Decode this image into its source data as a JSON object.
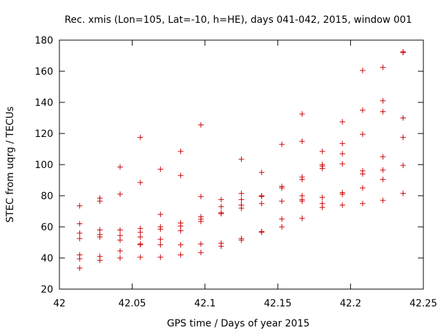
{
  "chart_data": {
    "type": "scatter",
    "title": "Rec. xmis (Lon=105, Lat=-10, h=HE), days 041-042, 2015, window 001",
    "xlabel": "GPS time / Days of year 2015",
    "ylabel": "STEC from uqrg / TECUs",
    "xlim": [
      42,
      42.25
    ],
    "ylim": [
      20,
      180
    ],
    "xticks": [
      42,
      42.05,
      42.1,
      42.15,
      42.2,
      42.25
    ],
    "xtick_labels": [
      "42",
      "42.05",
      "42.1",
      "42.15",
      "42.2",
      "42.25"
    ],
    "yticks": [
      20,
      40,
      60,
      80,
      100,
      120,
      140,
      160,
      180
    ],
    "ytick_labels": [
      "20",
      "40",
      "60",
      "80",
      "100",
      "120",
      "140",
      "160",
      "180"
    ],
    "grid": false,
    "marker": "plus",
    "color": "#cc0000",
    "series": [
      {
        "name": "STEC",
        "points": [
          [
            42.0139,
            33.5
          ],
          [
            42.0139,
            39.5
          ],
          [
            42.0139,
            42
          ],
          [
            42.0139,
            52.5
          ],
          [
            42.0139,
            56
          ],
          [
            42.0139,
            62
          ],
          [
            42.0139,
            73.5
          ],
          [
            42.0278,
            38.5
          ],
          [
            42.0278,
            41
          ],
          [
            42.0278,
            53.5
          ],
          [
            42.0278,
            55
          ],
          [
            42.0278,
            58
          ],
          [
            42.0278,
            76.5
          ],
          [
            42.0278,
            78.5
          ],
          [
            42.0417,
            40
          ],
          [
            42.0417,
            44.5
          ],
          [
            42.0417,
            51.5
          ],
          [
            42.0417,
            54.5
          ],
          [
            42.0417,
            58
          ],
          [
            42.0417,
            81
          ],
          [
            42.0417,
            98.5
          ],
          [
            42.0556,
            40.5
          ],
          [
            42.0556,
            48.5
          ],
          [
            42.0556,
            49
          ],
          [
            42.0556,
            53.5
          ],
          [
            42.0556,
            56.5
          ],
          [
            42.0556,
            59
          ],
          [
            42.0556,
            88.5
          ],
          [
            42.0556,
            117.5
          ],
          [
            42.0694,
            40.5
          ],
          [
            42.0694,
            48.5
          ],
          [
            42.0694,
            52
          ],
          [
            42.0694,
            58.5
          ],
          [
            42.0694,
            60
          ],
          [
            42.0694,
            68
          ],
          [
            42.0694,
            97
          ],
          [
            42.0833,
            42
          ],
          [
            42.0833,
            48.5
          ],
          [
            42.0833,
            57.5
          ],
          [
            42.0833,
            60.5
          ],
          [
            42.0833,
            62.5
          ],
          [
            42.0833,
            93
          ],
          [
            42.0833,
            108.5
          ],
          [
            42.0972,
            43.5
          ],
          [
            42.0972,
            49
          ],
          [
            42.0972,
            63.5
          ],
          [
            42.0972,
            65
          ],
          [
            42.0972,
            66.5
          ],
          [
            42.0972,
            79.5
          ],
          [
            42.0972,
            125.5
          ],
          [
            42.1111,
            47.5
          ],
          [
            42.1111,
            49.5
          ],
          [
            42.1111,
            68.5
          ],
          [
            42.1111,
            69
          ],
          [
            42.1111,
            73
          ],
          [
            42.1111,
            77.5
          ],
          [
            42.125,
            51.5
          ],
          [
            42.125,
            52.5
          ],
          [
            42.125,
            72
          ],
          [
            42.125,
            74
          ],
          [
            42.125,
            77.5
          ],
          [
            42.125,
            81.5
          ],
          [
            42.125,
            103.5
          ],
          [
            42.1389,
            56.5
          ],
          [
            42.1389,
            57
          ],
          [
            42.1389,
            75
          ],
          [
            42.1389,
            79.5
          ],
          [
            42.1389,
            80
          ],
          [
            42.1389,
            95
          ],
          [
            42.1528,
            60
          ],
          [
            42.1528,
            65
          ],
          [
            42.1528,
            76.5
          ],
          [
            42.1528,
            85
          ],
          [
            42.1528,
            86
          ],
          [
            42.1528,
            113
          ],
          [
            42.1667,
            65.5
          ],
          [
            42.1667,
            76.5
          ],
          [
            42.1667,
            77.5
          ],
          [
            42.1667,
            80
          ],
          [
            42.1667,
            90.5
          ],
          [
            42.1667,
            92
          ],
          [
            42.1667,
            115
          ],
          [
            42.1667,
            132.5
          ],
          [
            42.1806,
            72.5
          ],
          [
            42.1806,
            75
          ],
          [
            42.1806,
            79
          ],
          [
            42.1806,
            97.5
          ],
          [
            42.1806,
            99
          ],
          [
            42.1806,
            100
          ],
          [
            42.1806,
            108.5
          ],
          [
            42.1944,
            74
          ],
          [
            42.1944,
            81
          ],
          [
            42.1944,
            82
          ],
          [
            42.1944,
            100.5
          ],
          [
            42.1944,
            107
          ],
          [
            42.1944,
            113.5
          ],
          [
            42.1944,
            127.5
          ],
          [
            42.2083,
            75
          ],
          [
            42.2083,
            85
          ],
          [
            42.2083,
            94
          ],
          [
            42.2083,
            96
          ],
          [
            42.2083,
            119.5
          ],
          [
            42.2083,
            135
          ],
          [
            42.2083,
            160.5
          ],
          [
            42.2222,
            77
          ],
          [
            42.2222,
            90.5
          ],
          [
            42.2222,
            96.5
          ],
          [
            42.2222,
            105
          ],
          [
            42.2222,
            134
          ],
          [
            42.2222,
            141
          ],
          [
            42.2222,
            162.5
          ],
          [
            42.2361,
            81.5
          ],
          [
            42.2361,
            99.5
          ],
          [
            42.2361,
            117.5
          ],
          [
            42.2361,
            130
          ],
          [
            42.2361,
            172
          ],
          [
            42.2361,
            172.5
          ]
        ]
      }
    ]
  }
}
